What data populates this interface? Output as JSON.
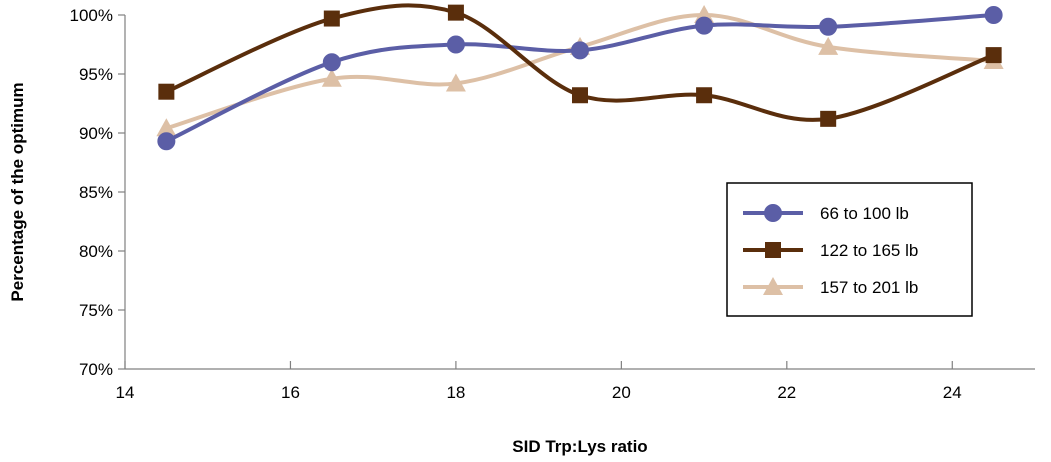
{
  "chart_data": {
    "type": "line",
    "xlabel": "SID Trp:Lys ratio",
    "ylabel": "Percentage of the optimum",
    "xlim": [
      14,
      25
    ],
    "ylim": [
      70,
      100
    ],
    "x_ticks": [
      "14",
      "16",
      "18",
      "20",
      "22",
      "24"
    ],
    "y_ticks": [
      "70%",
      "75%",
      "80%",
      "85%",
      "90%",
      "95%",
      "100%"
    ],
    "grid": false,
    "legend_position": "right",
    "series": [
      {
        "name": "66 to 100 lb",
        "color": "#5B5EA6",
        "marker": "circle",
        "x": [
          14.5,
          16.5,
          18,
          19.5,
          21,
          22.5,
          24.5
        ],
        "y": [
          89.3,
          96.0,
          97.5,
          97.0,
          99.1,
          99.0,
          100.0
        ]
      },
      {
        "name": "122 to 165 lb",
        "color": "#5A2E0C",
        "marker": "square",
        "x": [
          14.5,
          16.5,
          18,
          19.5,
          21,
          22.5,
          24.5
        ],
        "y": [
          93.5,
          99.7,
          100.2,
          93.2,
          93.2,
          91.2,
          96.6
        ]
      },
      {
        "name": "157 to 201 lb",
        "color": "#DDC0A6",
        "marker": "triangle",
        "x": [
          14.5,
          16.5,
          18,
          19.5,
          21,
          22.5,
          24.5
        ],
        "y": [
          90.4,
          94.6,
          94.2,
          97.3,
          100.0,
          97.3,
          96.1
        ]
      }
    ]
  }
}
